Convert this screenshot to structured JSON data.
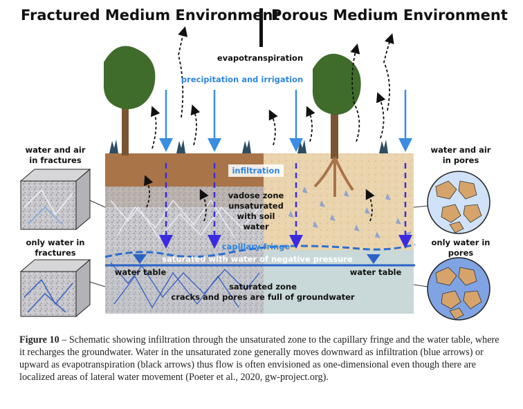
{
  "titles": {
    "left": "Fractured Medium Environment",
    "right": "Porous Medium Environment"
  },
  "labels": {
    "evapotranspiration": "evapotranspiration",
    "precipitation": "precipitation and irrigation",
    "infiltration": "infiltration",
    "vadose": "vadose zone\nunsaturated\nwith soil\nwater",
    "capillary_fringe": "capillary fringe",
    "saturated_negative": "saturated with water of negative pressure",
    "water_table_left": "water table",
    "water_table_right": "water table",
    "saturated_zone": "saturated zone\ncracks and pores are full of groundwater",
    "water_air_fractures": "water and air\nin fractures",
    "water_fractures": "only water in\nfractures",
    "water_air_pores": "water and air\nin pores",
    "water_pores": "only water in\npores"
  },
  "caption": {
    "label": "Figure 10",
    "text": " – Schematic showing infiltration through the unsaturated zone to the capillary fringe and the water table, where it recharges the groundwater. Water in the unsaturated zone generally moves downward as infiltration (blue arrows) or upward as evapotranspiration (black arrows) thus flow is often envisioned as one-dimensional even though there are localized areas of lateral water movement (Poeter et al., 2020, gw-project.org)."
  },
  "colors": {
    "infiltration_arrow": "#3a8de0",
    "fringe_blue": "#2a6fd0",
    "water_table": "#2b63c8",
    "evap_arrow": "#111111",
    "soil_fractured": "#b07a4a",
    "soil_porous": "#e9d2ab",
    "sat_porous": "#c9d8d8"
  }
}
